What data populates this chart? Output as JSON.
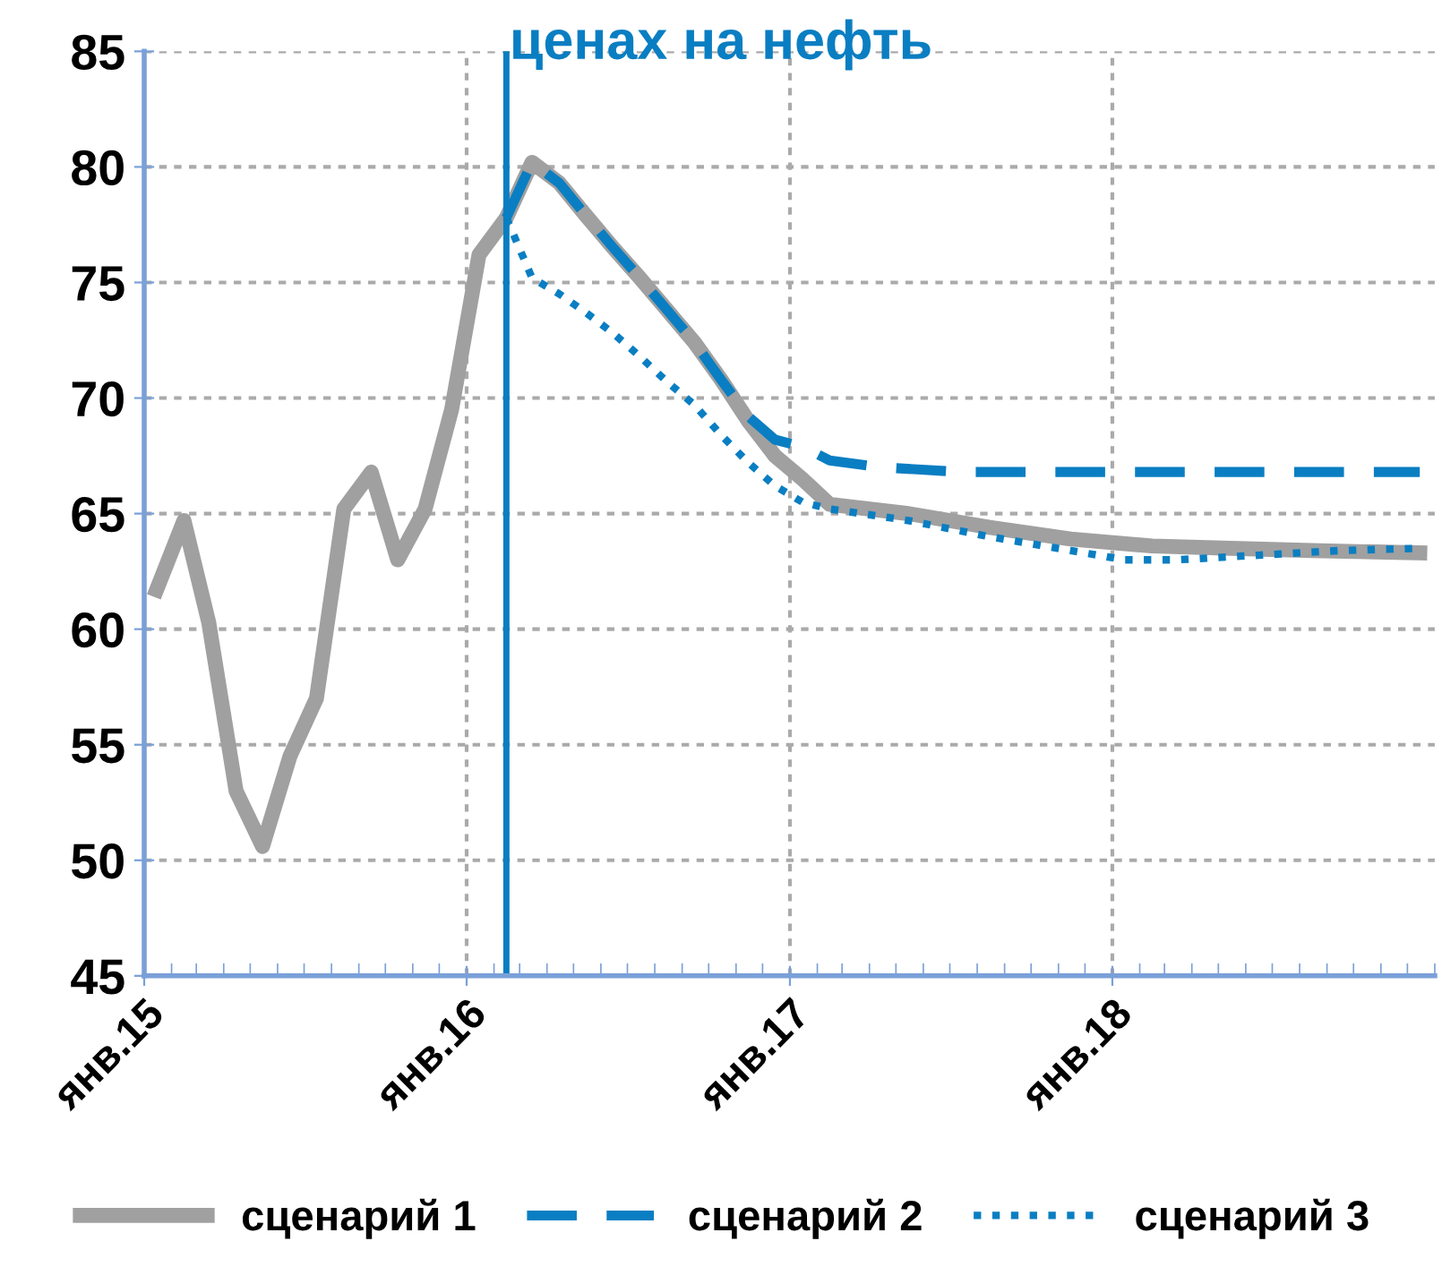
{
  "chart_data": {
    "type": "line",
    "title": "ценах на нефть",
    "xlim": [
      "2015-01",
      "2019-01"
    ],
    "xticks": [
      {
        "value": "2015-01",
        "label": "янв.15"
      },
      {
        "value": "2016-01",
        "label": "янв.16"
      },
      {
        "value": "2017-01",
        "label": "янв.17"
      },
      {
        "value": "2018-01",
        "label": "янв.18"
      }
    ],
    "ylim": [
      45,
      85
    ],
    "yticks": [
      45,
      50,
      55,
      60,
      65,
      70,
      75,
      80,
      85
    ],
    "grid": true,
    "legend": "bottom",
    "ref_lines": [
      {
        "axis": "x",
        "value": "2016-02-15",
        "color": "#0a7ec2"
      }
    ],
    "series": [
      {
        "name": "сценарий 1",
        "color": "#a0a0a0",
        "line_style": "solid",
        "x": [
          "2015-01-15",
          "2015-02-15",
          "2015-03-15",
          "2015-04-15",
          "2015-05-15",
          "2015-06-15",
          "2015-07-15",
          "2015-08-15",
          "2015-09-15",
          "2015-10-15",
          "2015-11-15",
          "2015-12-15",
          "2016-01-15",
          "2016-02-15",
          "2016-03-15",
          "2016-04-15",
          "2016-05-15",
          "2016-06-15",
          "2016-07-15",
          "2016-08-15",
          "2016-09-15",
          "2016-10-15",
          "2016-11-15",
          "2016-12-15",
          "2017-01-15",
          "2017-02-15",
          "2017-05-15",
          "2017-08-15",
          "2017-11-15",
          "2018-02-15",
          "2018-05-15",
          "2018-08-15",
          "2018-12-15"
        ],
        "values": [
          61.7,
          64.7,
          60.3,
          53,
          50.6,
          54.5,
          57,
          65.2,
          66.8,
          63,
          65.2,
          69.5,
          76.2,
          77.8,
          80.2,
          79.3,
          77.9,
          76.5,
          75.2,
          73.8,
          72.4,
          70.8,
          69,
          67.5,
          66.5,
          65.4,
          65,
          64.4,
          63.9,
          63.6,
          63.5,
          63.4,
          63.3
        ]
      },
      {
        "name": "сценарий 2",
        "color": "#0a7ec2",
        "line_style": "dashed",
        "x": [
          "2016-02-15",
          "2016-03-15",
          "2016-04-15",
          "2016-05-15",
          "2016-06-15",
          "2016-07-15",
          "2016-08-15",
          "2016-09-15",
          "2016-10-15",
          "2016-11-15",
          "2016-12-15",
          "2017-01-15",
          "2017-02-15",
          "2017-04-15",
          "2017-07-15",
          "2018-12-15"
        ],
        "values": [
          77.8,
          80.2,
          79.3,
          77.9,
          76.5,
          75.2,
          73.8,
          72.4,
          70.8,
          69.2,
          68.2,
          67.9,
          67.3,
          67,
          66.8,
          66.8
        ]
      },
      {
        "name": "сценарий 3",
        "color": "#0a7ec2",
        "line_style": "dotted",
        "x": [
          "2016-02-15",
          "2016-03-15",
          "2016-04-15",
          "2016-05-15",
          "2016-06-15",
          "2016-07-15",
          "2016-08-15",
          "2016-09-15",
          "2016-10-15",
          "2016-11-15",
          "2016-12-15",
          "2017-01-15",
          "2017-02-15",
          "2017-05-15",
          "2017-08-15",
          "2017-11-15",
          "2018-01-15",
          "2018-03-15",
          "2018-06-15",
          "2018-09-15",
          "2018-12-15"
        ],
        "values": [
          77.8,
          75.2,
          74.5,
          73.7,
          72.8,
          71.8,
          70.7,
          69.7,
          68.4,
          67.2,
          66.2,
          65.5,
          65.2,
          64.7,
          64,
          63.4,
          63,
          63,
          63.2,
          63.4,
          63.5
        ]
      }
    ]
  }
}
